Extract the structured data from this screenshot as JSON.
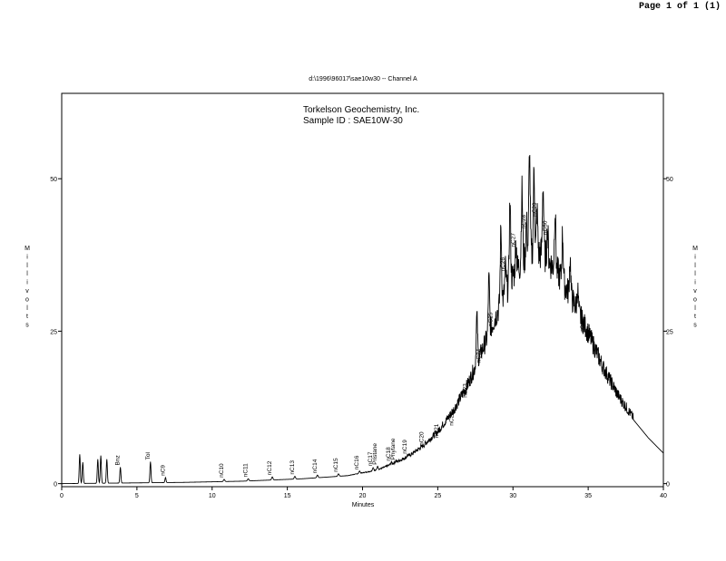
{
  "header": {
    "page_label": "Page 1 of 1 (1)",
    "file_title": "d:\\1996\\96017\\sae10w30 -- Channel A"
  },
  "info": {
    "company": "Torkelson Geochemistry, Inc.",
    "sample": "Sample ID  :  SAE10W-30"
  },
  "chart_data": {
    "type": "line",
    "title": "",
    "xlabel": "Minutes",
    "ylabel": "Millivolts",
    "xlim": [
      0,
      40
    ],
    "ylim": [
      -0.5,
      64
    ],
    "x_ticks": [
      0,
      5,
      10,
      15,
      20,
      25,
      30,
      35,
      40
    ],
    "y_ticks": [
      0,
      25,
      50
    ],
    "right_y_ticks": [
      0,
      25,
      50
    ],
    "grid": false,
    "legend": "none",
    "color": "#000000",
    "series": [
      {
        "baseline": [
          [
            0,
            0
          ],
          [
            8,
            0.2
          ],
          [
            12,
            0.4
          ],
          [
            16,
            0.8
          ],
          [
            19,
            1.3
          ],
          [
            21,
            2.2
          ],
          [
            22,
            3.2
          ],
          [
            23,
            4.3
          ],
          [
            24,
            6
          ],
          [
            25,
            8.3
          ],
          [
            26,
            11.5
          ],
          [
            27,
            15.8
          ],
          [
            28,
            21.5
          ],
          [
            29,
            27.5
          ],
          [
            30,
            33
          ],
          [
            31,
            36.5
          ],
          [
            32,
            36.5
          ],
          [
            33,
            33.5
          ],
          [
            34,
            29
          ],
          [
            35,
            24
          ],
          [
            36,
            18.5
          ],
          [
            37,
            14
          ],
          [
            38,
            10.5
          ],
          [
            39,
            7.5
          ],
          [
            40,
            5
          ]
        ],
        "peaks": [
          {
            "x": 1.2,
            "y": 4.8
          },
          {
            "x": 1.4,
            "y": 3.5
          },
          {
            "x": 2.4,
            "y": 4.0
          },
          {
            "x": 2.6,
            "y": 4.6
          },
          {
            "x": 3.0,
            "y": 4.0
          },
          {
            "x": 3.9,
            "y": 2.7,
            "label": "Bnz"
          },
          {
            "x": 5.9,
            "y": 3.6,
            "label": "Tol"
          },
          {
            "x": 6.9,
            "y": 1.0,
            "label": "nC9"
          },
          {
            "x": 10.8,
            "y": 0.7,
            "label": "nC10"
          },
          {
            "x": 12.4,
            "y": 0.8,
            "label": "nC11"
          },
          {
            "x": 14.0,
            "y": 1.1,
            "label": "nC12"
          },
          {
            "x": 15.5,
            "y": 1.2,
            "label": "nC13"
          },
          {
            "x": 17.0,
            "y": 1.4,
            "label": "nC14"
          },
          {
            "x": 18.4,
            "y": 1.6,
            "label": "nC15"
          },
          {
            "x": 19.8,
            "y": 2.0,
            "label": "nC16"
          },
          {
            "x": 20.7,
            "y": 2.6,
            "label": "nC17"
          },
          {
            "x": 21.0,
            "y": 2.8,
            "label": "Pristane"
          },
          {
            "x": 21.9,
            "y": 3.4,
            "label": "nC18"
          },
          {
            "x": 22.2,
            "y": 3.6,
            "label": "Phytane"
          },
          {
            "x": 23.0,
            "y": 4.6,
            "label": "nC19"
          },
          {
            "x": 24.1,
            "y": 5.9,
            "label": "nC20"
          },
          {
            "x": 25.1,
            "y": 7.2,
            "label": "nC21"
          },
          {
            "x": 26.1,
            "y": 9.2,
            "label": "nC22"
          },
          {
            "x": 27.0,
            "y": 13.8,
            "label": "nC23"
          },
          {
            "x": 27.9,
            "y": 19.5,
            "label": "nC24"
          },
          {
            "x": 28.7,
            "y": 25.5,
            "label": "nC25"
          },
          {
            "x": 29.5,
            "y": 34.5,
            "label": "nC26"
          },
          {
            "x": 30.2,
            "y": 38.5,
            "label": "nC27"
          },
          {
            "x": 30.9,
            "y": 41.5,
            "label": "nC28"
          },
          {
            "x": 31.6,
            "y": 43.5,
            "label": "nC29"
          },
          {
            "x": 32.3,
            "y": 40.5,
            "label": "nC30"
          },
          {
            "x": 34.8,
            "y": 24.5,
            "label": "nC34"
          },
          {
            "x": 31.1,
            "y": 53
          },
          {
            "x": 30.6,
            "y": 47
          },
          {
            "x": 32.0,
            "y": 48
          },
          {
            "x": 29.8,
            "y": 45
          },
          {
            "x": 29.2,
            "y": 41
          },
          {
            "x": 31.4,
            "y": 50
          },
          {
            "x": 32.8,
            "y": 44
          },
          {
            "x": 33.3,
            "y": 40
          },
          {
            "x": 33.8,
            "y": 36
          },
          {
            "x": 28.4,
            "y": 33
          },
          {
            "x": 27.6,
            "y": 27
          },
          {
            "x": 34.3,
            "y": 31
          }
        ]
      }
    ]
  }
}
